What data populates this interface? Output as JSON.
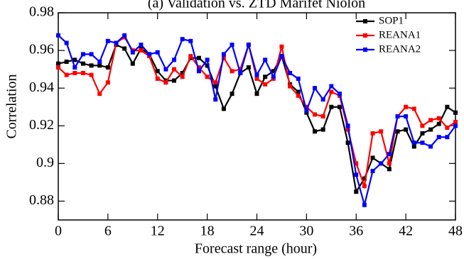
{
  "chart_data": {
    "type": "line",
    "title": "(a) Validation vs. ZTD Marifet Niolon",
    "x_label": "Forecast range (hour)",
    "y_label": "Correlation",
    "x": [
      0,
      1,
      2,
      3,
      4,
      5,
      6,
      7,
      8,
      9,
      10,
      11,
      12,
      13,
      14,
      15,
      16,
      17,
      18,
      19,
      20,
      21,
      22,
      23,
      24,
      25,
      26,
      27,
      28,
      29,
      30,
      31,
      32,
      33,
      34,
      35,
      36,
      37,
      38,
      39,
      40,
      41,
      42,
      43,
      44,
      45,
      46,
      47,
      48
    ],
    "series": [
      {
        "name": "SOP1",
        "color": "#000000",
        "values": [
          0.953,
          0.954,
          0.955,
          0.953,
          0.952,
          0.952,
          0.951,
          0.963,
          0.961,
          0.953,
          0.961,
          0.958,
          0.949,
          0.944,
          0.944,
          0.948,
          0.956,
          0.956,
          0.952,
          0.941,
          0.929,
          0.937,
          0.948,
          0.951,
          0.937,
          0.946,
          0.949,
          0.957,
          0.942,
          0.938,
          0.927,
          0.917,
          0.918,
          0.93,
          0.93,
          0.911,
          0.885,
          0.892,
          0.903,
          0.9,
          0.897,
          0.917,
          0.918,
          0.909,
          0.916,
          0.918,
          0.921,
          0.93,
          0.927
        ]
      },
      {
        "name": "REANA1",
        "color": "#ff0000",
        "values": [
          0.951,
          0.947,
          0.948,
          0.948,
          0.947,
          0.937,
          0.943,
          0.964,
          0.967,
          0.96,
          0.96,
          0.957,
          0.945,
          0.943,
          0.95,
          0.946,
          0.957,
          0.951,
          0.946,
          0.943,
          0.956,
          0.949,
          0.95,
          0.963,
          0.945,
          0.942,
          0.945,
          0.962,
          0.941,
          0.936,
          0.93,
          0.926,
          0.925,
          0.938,
          0.936,
          0.918,
          0.9,
          0.888,
          0.916,
          0.917,
          0.9,
          0.925,
          0.93,
          0.929,
          0.92,
          0.923,
          0.924,
          0.919,
          0.922
        ]
      },
      {
        "name": "REANA2",
        "color": "#0000ff",
        "values": [
          0.968,
          0.964,
          0.951,
          0.958,
          0.958,
          0.954,
          0.965,
          0.964,
          0.968,
          0.959,
          0.963,
          0.958,
          0.959,
          0.95,
          0.955,
          0.966,
          0.965,
          0.949,
          0.955,
          0.934,
          0.958,
          0.963,
          0.948,
          0.963,
          0.947,
          0.955,
          0.946,
          0.957,
          0.948,
          0.945,
          0.928,
          0.94,
          0.934,
          0.941,
          0.937,
          0.92,
          0.894,
          0.878,
          0.896,
          0.9,
          0.905,
          0.925,
          0.925,
          0.911,
          0.911,
          0.909,
          0.914,
          0.914,
          0.92
        ]
      }
    ],
    "xlim": [
      0,
      48
    ],
    "xticks": [
      0,
      6,
      12,
      18,
      24,
      30,
      36,
      42,
      48
    ],
    "ylim": [
      0.87,
      0.98
    ],
    "yticks": [
      0.88,
      0.9,
      0.92,
      0.94,
      0.96,
      0.98
    ],
    "legend": "upper-right"
  }
}
